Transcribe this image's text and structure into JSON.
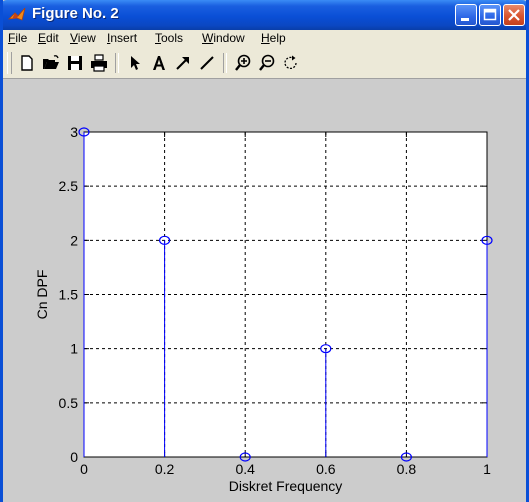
{
  "window": {
    "title": "Figure No. 2"
  },
  "menu": {
    "items": [
      {
        "key": "F",
        "rest": "ile"
      },
      {
        "key": "E",
        "rest": "dit"
      },
      {
        "key": "V",
        "rest": "iew"
      },
      {
        "key": "I",
        "rest": "nsert"
      },
      {
        "key": "T",
        "rest": "ools"
      },
      {
        "key": "W",
        "rest": "indow"
      },
      {
        "key": "H",
        "rest": "elp"
      }
    ]
  },
  "toolbar": {
    "icons": [
      "new-file-icon",
      "open-folder-icon",
      "save-icon",
      "print-icon",
      "select-arrow-icon",
      "insert-text-icon",
      "insert-arrow-icon",
      "insert-line-icon",
      "zoom-in-icon",
      "zoom-out-icon",
      "rotate-icon"
    ]
  },
  "colors": {
    "titlebar": "#0a4fd6",
    "stem": "#0000ff",
    "figure_bg": "#cccccc"
  },
  "chart_data": {
    "type": "stem",
    "x": [
      0,
      0.2,
      0.4,
      0.6,
      0.8,
      1.0
    ],
    "y": [
      3,
      2,
      0,
      1,
      0,
      2
    ],
    "xlabel": "Diskret Frequency",
    "ylabel": "Cn DPF",
    "xlim": [
      0,
      1
    ],
    "ylim": [
      0,
      3
    ],
    "xticks": [
      "0",
      "0.2",
      "0.4",
      "0.6",
      "0.8",
      "1"
    ],
    "yticks": [
      "0",
      "0.5",
      "1",
      "1.5",
      "2",
      "2.5",
      "3"
    ],
    "grid": true,
    "marker": "circle"
  }
}
